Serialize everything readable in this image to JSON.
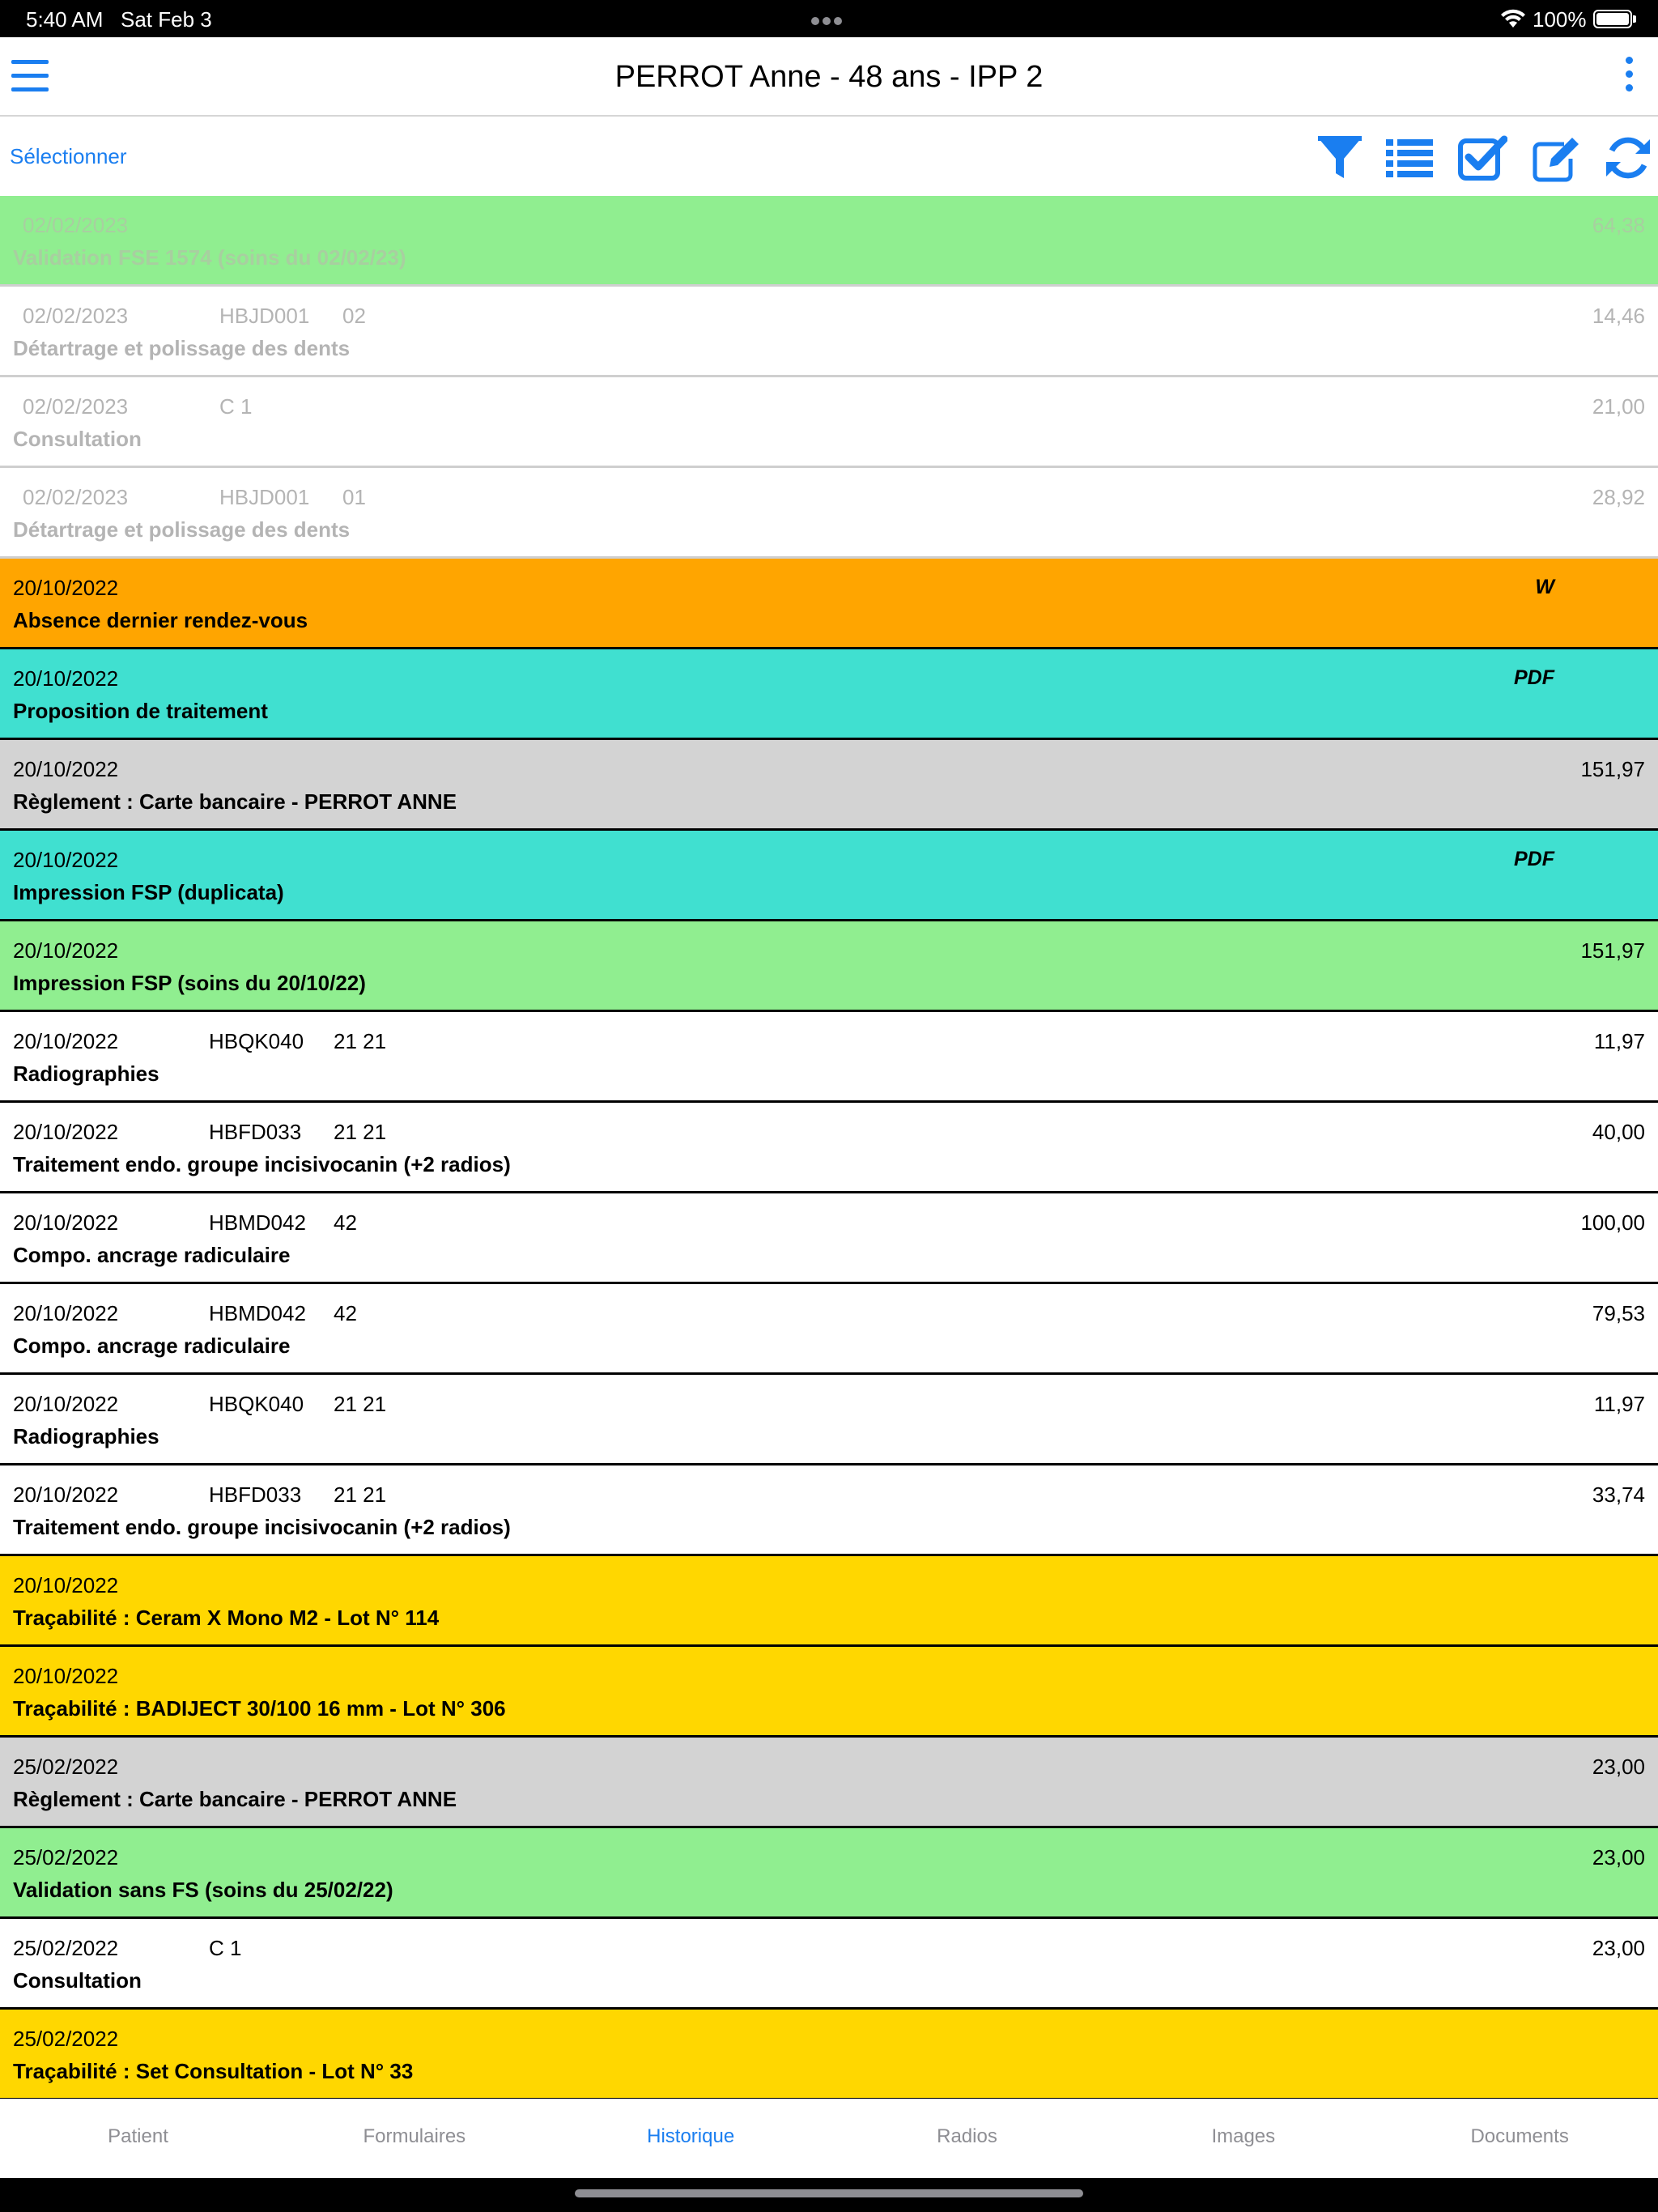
{
  "status_bar": {
    "time": "5:40 AM",
    "date": "Sat Feb 3",
    "battery": "100%"
  },
  "nav": {
    "title": "PERROT Anne - 48 ans - IPP 2"
  },
  "toolbar": {
    "select_label": "Sélectionner",
    "icons": [
      "filter-icon",
      "list-icon",
      "checkbox-icon",
      "edit-icon",
      "refresh-icon"
    ]
  },
  "colors": {
    "accent": "#1a7ef0",
    "green": "#90ee90",
    "orange": "#ffa500",
    "cyan": "#40e0d0",
    "gray": "#d3d3d3",
    "gold": "#ffd700"
  },
  "history": [
    {
      "date": "02/02/2023",
      "code": "",
      "teeth": "",
      "label": "Validation FSE 1574 (soins du 02/02/23)",
      "amount": "64,38",
      "doc": "",
      "color": "green",
      "faded": true
    },
    {
      "date": "02/02/2023",
      "code": "HBJD001",
      "teeth": "02",
      "label": "Détartrage et polissage des dents",
      "amount": "14,46",
      "doc": "",
      "color": "white",
      "faded": true
    },
    {
      "date": "02/02/2023",
      "code": "C 1",
      "teeth": "",
      "label": "Consultation",
      "amount": "21,00",
      "doc": "",
      "color": "white",
      "faded": true
    },
    {
      "date": "02/02/2023",
      "code": "HBJD001",
      "teeth": "01",
      "label": "Détartrage et polissage des dents",
      "amount": "28,92",
      "doc": "",
      "color": "white",
      "faded": true
    },
    {
      "date": "20/10/2022",
      "code": "",
      "teeth": "",
      "label": "Absence dernier rendez-vous",
      "amount": "",
      "doc": "W",
      "color": "orange",
      "faded": false
    },
    {
      "date": "20/10/2022",
      "code": "",
      "teeth": "",
      "label": "Proposition de traitement",
      "amount": "",
      "doc": "PDF",
      "color": "cyan",
      "faded": false
    },
    {
      "date": "20/10/2022",
      "code": "",
      "teeth": "",
      "label": "Règlement : Carte bancaire - PERROT ANNE",
      "amount": "151,97",
      "doc": "",
      "color": "gray",
      "faded": false
    },
    {
      "date": "20/10/2022",
      "code": "",
      "teeth": "",
      "label": "Impression FSP (duplicata)",
      "amount": "",
      "doc": "PDF",
      "color": "cyan",
      "faded": false
    },
    {
      "date": "20/10/2022",
      "code": "",
      "teeth": "",
      "label": "Impression FSP (soins du 20/10/22)",
      "amount": "151,97",
      "doc": "",
      "color": "green",
      "faded": false
    },
    {
      "date": "20/10/2022",
      "code": "HBQK040",
      "teeth": "21 21",
      "label": "Radiographies",
      "amount": "11,97",
      "doc": "",
      "color": "white",
      "faded": false
    },
    {
      "date": "20/10/2022",
      "code": "HBFD033",
      "teeth": "21 21",
      "label": "Traitement endo. groupe incisivocanin (+2 radios)",
      "amount": "40,00",
      "doc": "",
      "color": "white",
      "faded": false
    },
    {
      "date": "20/10/2022",
      "code": "HBMD042",
      "teeth": "42",
      "label": "Compo. ancrage radiculaire",
      "amount": "100,00",
      "doc": "",
      "color": "white",
      "faded": false
    },
    {
      "date": "20/10/2022",
      "code": "HBMD042",
      "teeth": "42",
      "label": "Compo. ancrage radiculaire",
      "amount": "79,53",
      "doc": "",
      "color": "white",
      "faded": false
    },
    {
      "date": "20/10/2022",
      "code": "HBQK040",
      "teeth": "21 21",
      "label": "Radiographies",
      "amount": "11,97",
      "doc": "",
      "color": "white",
      "faded": false
    },
    {
      "date": "20/10/2022",
      "code": "HBFD033",
      "teeth": "21 21",
      "label": "Traitement endo. groupe incisivocanin (+2 radios)",
      "amount": "33,74",
      "doc": "",
      "color": "white",
      "faded": false
    },
    {
      "date": "20/10/2022",
      "code": "",
      "teeth": "",
      "label": "Traçabilité : Ceram X Mono M2 - Lot N° 114",
      "amount": "",
      "doc": "",
      "color": "gold",
      "faded": false
    },
    {
      "date": "20/10/2022",
      "code": "",
      "teeth": "",
      "label": "Traçabilité : BADIJECT 30/100 16 mm - Lot N° 306",
      "amount": "",
      "doc": "",
      "color": "gold",
      "faded": false
    },
    {
      "date": "25/02/2022",
      "code": "",
      "teeth": "",
      "label": "Règlement : Carte bancaire - PERROT ANNE",
      "amount": "23,00",
      "doc": "",
      "color": "gray",
      "faded": false
    },
    {
      "date": "25/02/2022",
      "code": "",
      "teeth": "",
      "label": "Validation sans FS (soins du 25/02/22)",
      "amount": "23,00",
      "doc": "",
      "color": "green",
      "faded": false
    },
    {
      "date": "25/02/2022",
      "code": "C 1",
      "teeth": "",
      "label": "Consultation",
      "amount": "23,00",
      "doc": "",
      "color": "white",
      "faded": false
    },
    {
      "date": "25/02/2022",
      "code": "",
      "teeth": "",
      "label": "Traçabilité : Set Consultation - Lot N° 33",
      "amount": "",
      "doc": "",
      "color": "gold",
      "faded": false
    }
  ],
  "tabs": [
    {
      "label": "Patient",
      "active": false
    },
    {
      "label": "Formulaires",
      "active": false
    },
    {
      "label": "Historique",
      "active": true
    },
    {
      "label": "Radios",
      "active": false
    },
    {
      "label": "Images",
      "active": false
    },
    {
      "label": "Documents",
      "active": false
    }
  ]
}
